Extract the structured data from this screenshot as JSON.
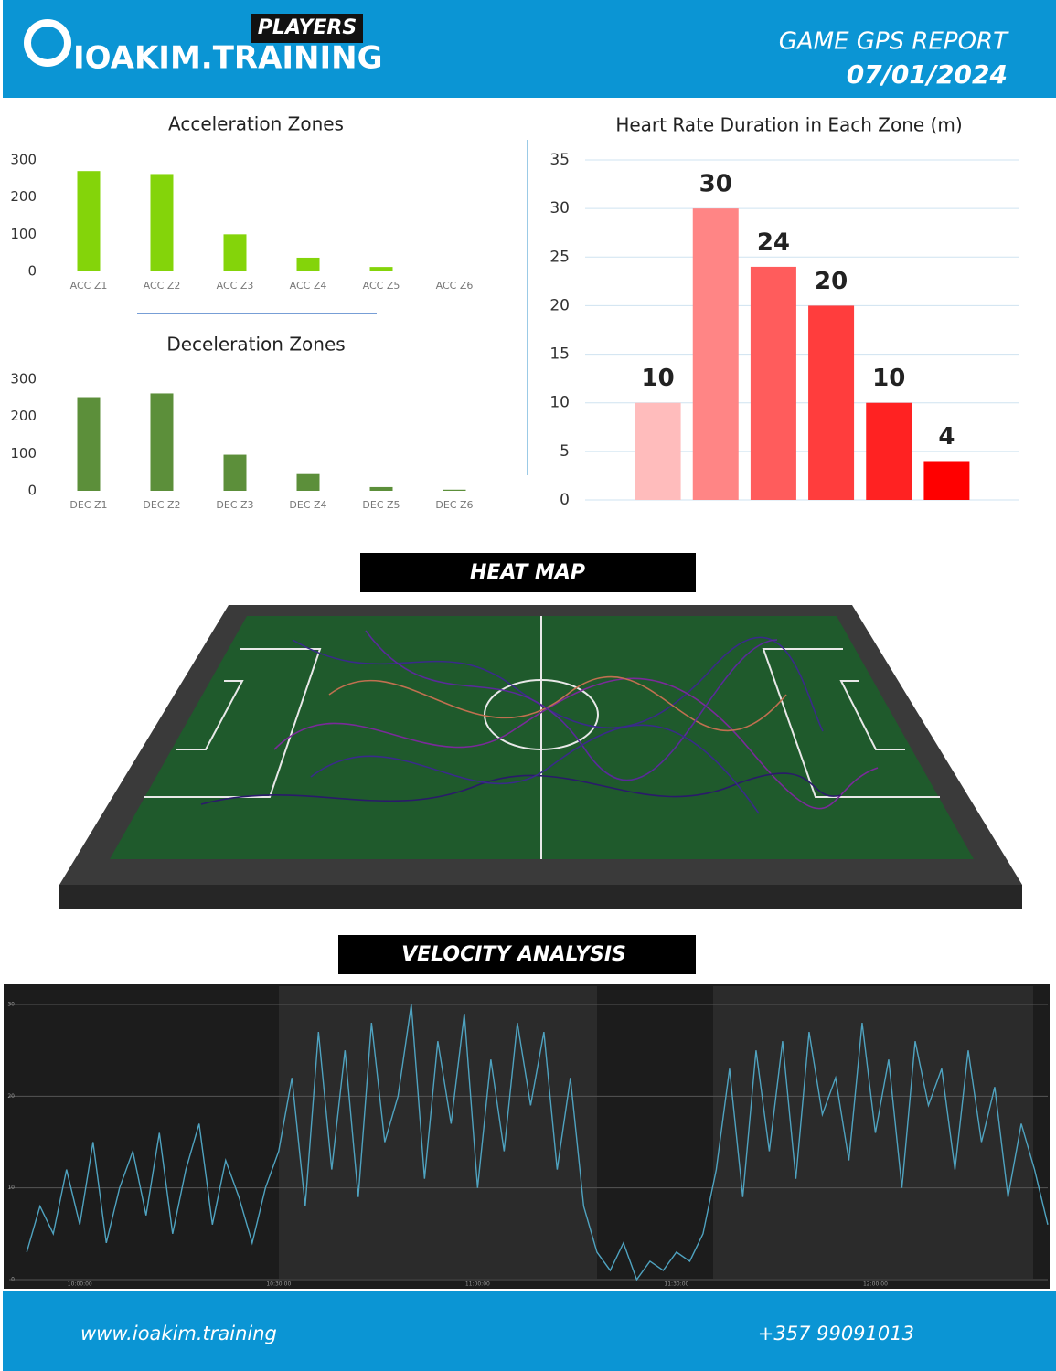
{
  "header": {
    "badge": "PLAYERS",
    "brand": "IOAKIM.TRAINING",
    "report": "GAME GPS REPORT",
    "date": "07/01/2024"
  },
  "sections": {
    "heat_map": "HEAT MAP",
    "velocity": "VELOCITY ANALYSIS"
  },
  "footer": {
    "website": "www.ioakim.training",
    "phone": "+357 99091013"
  },
  "chart_data": [
    {
      "type": "bar",
      "title": "Acceleration Zones",
      "categories": [
        "ACC Z1",
        "ACC Z2",
        "ACC Z3",
        "ACC Z4",
        "ACC Z5",
        "ACC Z6"
      ],
      "values": [
        270,
        262,
        100,
        37,
        12,
        2
      ],
      "color": "#84d40a",
      "ylim": [
        0,
        300
      ],
      "yticks": [
        0,
        100,
        200,
        300
      ],
      "grid": false
    },
    {
      "type": "bar",
      "title": "Deceleration Zones",
      "categories": [
        "DEC Z1",
        "DEC Z2",
        "DEC Z3",
        "DEC Z4",
        "DEC Z5",
        "DEC Z6"
      ],
      "values": [
        252,
        262,
        97,
        45,
        10,
        3
      ],
      "color": "#5c8f3a",
      "ylim": [
        0,
        300
      ],
      "yticks": [
        0,
        100,
        200,
        300
      ],
      "grid": false
    },
    {
      "type": "bar",
      "title": "Heart Rate Duration in Each Zone (m)",
      "values": [
        10,
        30,
        24,
        20,
        10,
        4
      ],
      "colors": [
        "#ffbcbc",
        "#ff8585",
        "#ff5c5c",
        "#ff3d3d",
        "#ff2222",
        "#ff0000"
      ],
      "ylim": [
        0,
        35
      ],
      "yticks": [
        0,
        5,
        10,
        15,
        20,
        25,
        30,
        35
      ],
      "grid": true,
      "data_labels": true
    },
    {
      "type": "line",
      "color": "#4fa3c0",
      "x": [
        -8,
        -6,
        -4,
        -2,
        0,
        2,
        4,
        6,
        8,
        10,
        12,
        14,
        16,
        18,
        20,
        22,
        24,
        26,
        28,
        30,
        32,
        34,
        36,
        38,
        40,
        42,
        44,
        46,
        48,
        50,
        52,
        54,
        56,
        58,
        60,
        62,
        64,
        66,
        68,
        70,
        72,
        74,
        76,
        78,
        80,
        82,
        84,
        86,
        88,
        90,
        92,
        94,
        96,
        98,
        100,
        102,
        104,
        106,
        108,
        110,
        112,
        114,
        116,
        118,
        120,
        122,
        124,
        126,
        128,
        130,
        132,
        134,
        136,
        138,
        140,
        142,
        144,
        146
      ],
      "values": [
        3,
        8,
        5,
        12,
        6,
        15,
        4,
        10,
        14,
        7,
        16,
        5,
        12,
        17,
        6,
        13,
        9,
        4,
        10,
        14,
        22,
        8,
        27,
        12,
        25,
        9,
        28,
        15,
        20,
        30,
        11,
        26,
        17,
        29,
        10,
        24,
        14,
        28,
        19,
        27,
        12,
        22,
        8,
        3,
        1,
        4,
        0,
        2,
        1,
        3,
        2,
        5,
        12,
        23,
        9,
        25,
        14,
        26,
        11,
        27,
        18,
        22,
        13,
        28,
        16,
        24,
        10,
        26,
        19,
        23,
        12,
        25,
        15,
        21,
        9,
        17,
        12,
        6
      ],
      "xlim": [
        -9,
        146
      ],
      "xticks": [
        {
          "value": 0,
          "label": "10:00:00"
        },
        {
          "value": 30,
          "label": "10:30:00"
        },
        {
          "value": 60,
          "label": "11:00:00"
        },
        {
          "value": 90,
          "label": "11:30:00"
        },
        {
          "value": 120,
          "label": "12:00:00"
        }
      ],
      "ylim": [
        0,
        30
      ],
      "yticks": [
        0,
        10,
        20,
        30
      ],
      "grid": true
    }
  ]
}
